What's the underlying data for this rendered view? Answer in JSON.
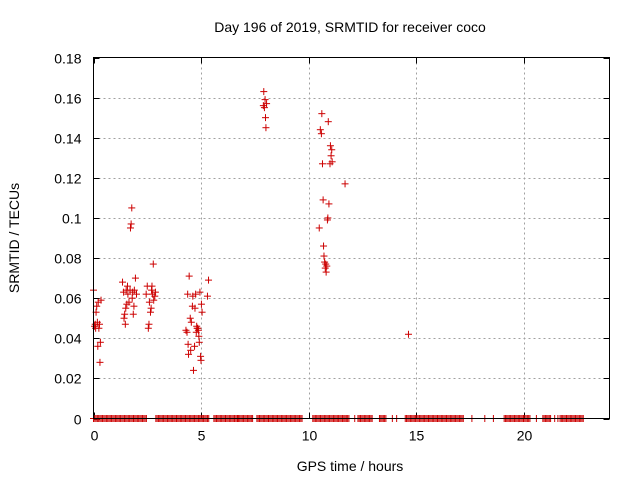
{
  "chart_data": {
    "type": "scatter",
    "title": "Day 196 of 2019, SRMTID for receiver coco",
    "xlabel": "GPS time / hours",
    "ylabel": "SRMTID / TECUs",
    "xlim": [
      0,
      24
    ],
    "ylim": [
      0,
      0.18
    ],
    "xticks": [
      0,
      5,
      10,
      15,
      20
    ],
    "xtick_labels": [
      "0",
      "5",
      "10",
      "15",
      "20"
    ],
    "yticks": [
      0,
      0.02,
      0.04,
      0.06,
      0.08,
      0.1,
      0.12,
      0.14,
      0.16,
      0.18
    ],
    "ytick_labels": [
      "0",
      "0.02",
      "0.04",
      "0.06",
      "0.08",
      "0.1",
      "0.12",
      "0.14",
      "0.16",
      "0.18"
    ],
    "grid": true,
    "marker": "+",
    "color": "#cc0000",
    "series": [
      {
        "name": "SRMTID",
        "points": [
          [
            0.0,
            0.064
          ],
          [
            0.05,
            0.046
          ],
          [
            0.08,
            0.047
          ],
          [
            0.1,
            0.045
          ],
          [
            0.12,
            0.053
          ],
          [
            0.15,
            0.056
          ],
          [
            0.18,
            0.048
          ],
          [
            0.2,
            0.036
          ],
          [
            0.22,
            0.058
          ],
          [
            0.25,
            0.045
          ],
          [
            0.28,
            0.047
          ],
          [
            0.3,
            0.028
          ],
          [
            0.32,
            0.038
          ],
          [
            0.35,
            0.059
          ],
          [
            1.35,
            0.068
          ],
          [
            1.4,
            0.063
          ],
          [
            1.42,
            0.05
          ],
          [
            1.45,
            0.052
          ],
          [
            1.48,
            0.047
          ],
          [
            1.5,
            0.055
          ],
          [
            1.52,
            0.064
          ],
          [
            1.55,
            0.057
          ],
          [
            1.58,
            0.066
          ],
          [
            1.6,
            0.062
          ],
          [
            1.65,
            0.058
          ],
          [
            1.7,
            0.064
          ],
          [
            1.72,
            0.095
          ],
          [
            1.75,
            0.097
          ],
          [
            1.78,
            0.105
          ],
          [
            1.8,
            0.06
          ],
          [
            1.82,
            0.063
          ],
          [
            1.85,
            0.052
          ],
          [
            1.88,
            0.056
          ],
          [
            1.9,
            0.064
          ],
          [
            1.95,
            0.07
          ],
          [
            2.0,
            0.062
          ],
          [
            2.45,
            0.062
          ],
          [
            2.5,
            0.066
          ],
          [
            2.55,
            0.045
          ],
          [
            2.58,
            0.047
          ],
          [
            2.6,
            0.058
          ],
          [
            2.65,
            0.053
          ],
          [
            2.68,
            0.055
          ],
          [
            2.7,
            0.064
          ],
          [
            2.72,
            0.066
          ],
          [
            2.75,
            0.062
          ],
          [
            2.78,
            0.077
          ],
          [
            2.8,
            0.059
          ],
          [
            2.85,
            0.061
          ],
          [
            2.88,
            0.063
          ],
          [
            4.3,
            0.044
          ],
          [
            4.35,
            0.043
          ],
          [
            4.38,
            0.062
          ],
          [
            4.4,
            0.037
          ],
          [
            4.42,
            0.032
          ],
          [
            4.45,
            0.071
          ],
          [
            4.5,
            0.05
          ],
          [
            4.52,
            0.034
          ],
          [
            4.55,
            0.048
          ],
          [
            4.6,
            0.056
          ],
          [
            4.62,
            0.061
          ],
          [
            4.65,
            0.024
          ],
          [
            4.7,
            0.036
          ],
          [
            4.72,
            0.055
          ],
          [
            4.75,
            0.062
          ],
          [
            4.78,
            0.043
          ],
          [
            4.8,
            0.046
          ],
          [
            4.82,
            0.045
          ],
          [
            4.85,
            0.045
          ],
          [
            4.88,
            0.044
          ],
          [
            4.9,
            0.041
          ],
          [
            4.92,
            0.038
          ],
          [
            4.95,
            0.063
          ],
          [
            4.98,
            0.031
          ],
          [
            5.0,
            0.029
          ],
          [
            5.02,
            0.057
          ],
          [
            5.05,
            0.053
          ],
          [
            5.3,
            0.061
          ],
          [
            5.35,
            0.069
          ],
          [
            7.9,
            0.156
          ],
          [
            7.92,
            0.163
          ],
          [
            7.95,
            0.155
          ],
          [
            7.98,
            0.159
          ],
          [
            8.0,
            0.15
          ],
          [
            8.02,
            0.145
          ],
          [
            8.05,
            0.157
          ],
          [
            10.5,
            0.095
          ],
          [
            10.55,
            0.144
          ],
          [
            10.6,
            0.142
          ],
          [
            10.62,
            0.152
          ],
          [
            10.65,
            0.127
          ],
          [
            10.68,
            0.109
          ],
          [
            10.7,
            0.086
          ],
          [
            10.72,
            0.081
          ],
          [
            10.75,
            0.078
          ],
          [
            10.78,
            0.075
          ],
          [
            10.8,
            0.077
          ],
          [
            10.82,
            0.073
          ],
          [
            10.85,
            0.076
          ],
          [
            10.88,
            0.099
          ],
          [
            10.9,
            0.1
          ],
          [
            10.92,
            0.148
          ],
          [
            10.95,
            0.107
          ],
          [
            11.0,
            0.127
          ],
          [
            11.02,
            0.136
          ],
          [
            11.05,
            0.131
          ],
          [
            11.08,
            0.134
          ],
          [
            11.1,
            0.128
          ],
          [
            11.7,
            0.117
          ],
          [
            14.65,
            0.042
          ]
        ]
      }
    ],
    "zero_value_spans": [
      [
        0,
        2.5
      ],
      [
        2.9,
        5.4
      ],
      [
        5.6,
        7.4
      ],
      [
        7.6,
        9.7
      ],
      [
        10.2,
        11.9
      ],
      [
        12.3,
        13.0
      ],
      [
        13.3,
        13.6
      ],
      [
        14.5,
        17.2
      ],
      [
        19.1,
        20.3
      ],
      [
        20.9,
        21.3
      ],
      [
        21.7,
        22.8
      ]
    ],
    "zero_value_points": [
      6.7,
      11.7,
      12.15,
      13.9,
      14.1,
      17.6,
      18.2,
      18.6,
      20.6,
      21.45,
      21.6
    ]
  }
}
